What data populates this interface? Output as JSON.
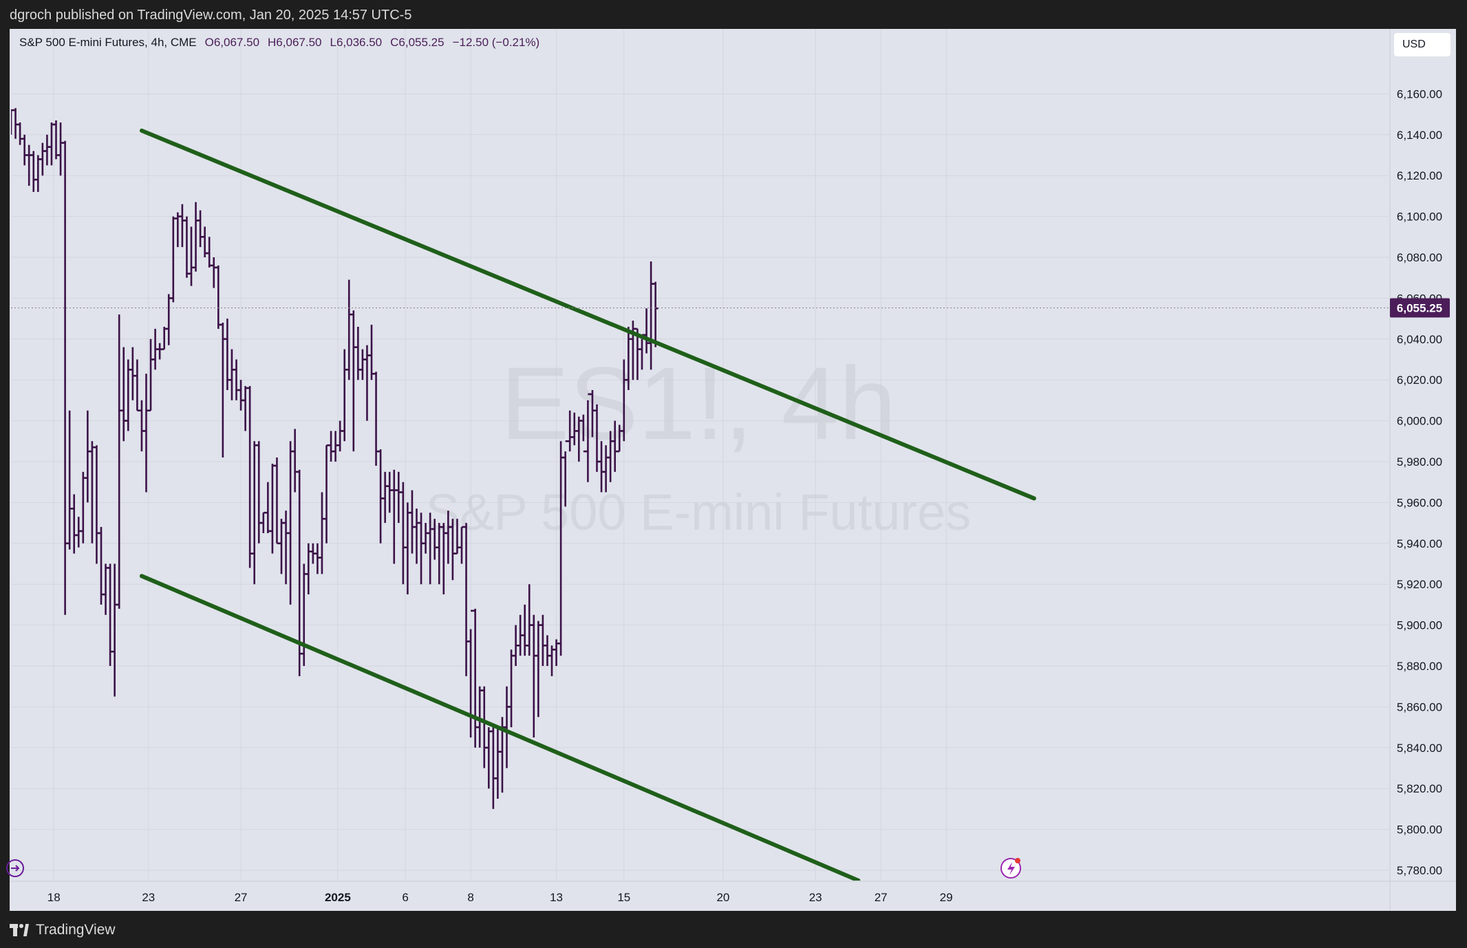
{
  "header": {
    "published_by": "dgroch published on TradingView.com, Jan 20, 2025 14:57 UTC-5"
  },
  "legend": {
    "symbol": "S&P 500 E-mini Futures, 4h, CME",
    "open": "O6,067.50",
    "high": "H6,067.50",
    "low": "L6,036.50",
    "close": "C6,055.25",
    "change": "−12.50 (−0.21%)"
  },
  "currency_label": "USD",
  "watermark": {
    "ticker": "ES1!, 4h",
    "name": "S&P 500 E-mini Futures"
  },
  "footer": {
    "brand": "TradingView"
  },
  "colors": {
    "bars": "#3b1247",
    "channel": "#1f5f1a",
    "price_tag": "#4b1d59",
    "background": "#e0e3eb"
  },
  "chart_data": {
    "type": "ohlc",
    "title": "S&P 500 E-mini Futures, 4h, CME",
    "ylim": [
      5775,
      6185
    ],
    "y_ticks": [
      5780,
      5800,
      5820,
      5840,
      5860,
      5880,
      5900,
      5920,
      5940,
      5960,
      5980,
      6000,
      6020,
      6040,
      6060,
      6080,
      6100,
      6120,
      6140,
      6160
    ],
    "y_tick_labels": [
      "5,780.00",
      "5,800.00",
      "5,820.00",
      "5,840.00",
      "5,860.00",
      "5,880.00",
      "5,900.00",
      "5,920.00",
      "5,940.00",
      "5,960.00",
      "5,980.00",
      "6,000.00",
      "6,020.00",
      "6,040.00",
      "6,060.00",
      "6,080.00",
      "6,100.00",
      "6,120.00",
      "6,140.00",
      "6,160.00"
    ],
    "x_ticks": [
      {
        "label": "18",
        "bar": 9.5
      },
      {
        "label": "23",
        "bar": 30.5
      },
      {
        "label": "27",
        "bar": 51
      },
      {
        "label": "2025",
        "bar": 72.5,
        "bold": true
      },
      {
        "label": "6",
        "bar": 87.5
      },
      {
        "label": "8",
        "bar": 102
      },
      {
        "label": "13",
        "bar": 121
      },
      {
        "label": "15",
        "bar": 136
      },
      {
        "label": "20",
        "bar": 158
      },
      {
        "label": "23",
        "bar": 178.5
      },
      {
        "label": "27",
        "bar": 193
      },
      {
        "label": "29",
        "bar": 207.5
      }
    ],
    "last_price": 6055.25,
    "last_price_label": "6,055.25",
    "channel": [
      {
        "name": "upper",
        "from": {
          "bar": 29,
          "price": 6142
        },
        "to": {
          "bar": 227,
          "price": 5962
        }
      },
      {
        "name": "lower",
        "from": {
          "bar": 29,
          "price": 5924
        },
        "to": {
          "bar": 188,
          "price": 5775
        }
      }
    ],
    "bars": [
      [
        6145,
        6152,
        6140,
        6152
      ],
      [
        6152,
        6153,
        6138,
        6145
      ],
      [
        6145,
        6146,
        6135,
        6138
      ],
      [
        6138,
        6140,
        6125,
        6130
      ],
      [
        6130,
        6135,
        6115,
        6130
      ],
      [
        6130,
        6132,
        6112,
        6118
      ],
      [
        6118,
        6130,
        6112,
        6128
      ],
      [
        6128,
        6136,
        6120,
        6132
      ],
      [
        6132,
        6140,
        6125,
        6134
      ],
      [
        6134,
        6146,
        6125,
        6145
      ],
      [
        6145,
        6147,
        6128,
        6130
      ],
      [
        6130,
        6146,
        6120,
        6136
      ],
      [
        6136,
        6137,
        5905,
        5940
      ],
      [
        5940,
        6005,
        5937,
        5957
      ],
      [
        5957,
        5964,
        5935,
        5944
      ],
      [
        5944,
        5953,
        5938,
        5946
      ],
      [
        5946,
        5975,
        5940,
        5972
      ],
      [
        5972,
        6005,
        5960,
        5985
      ],
      [
        5985,
        5990,
        5940,
        5987
      ],
      [
        5987,
        5988,
        5930,
        5945
      ],
      [
        5945,
        5948,
        5910,
        5915
      ],
      [
        5915,
        5930,
        5905,
        5928
      ],
      [
        5928,
        5930,
        5880,
        5887
      ],
      [
        5887,
        5930,
        5865,
        5910
      ],
      [
        5910,
        6052,
        5908,
        6005
      ],
      [
        6005,
        6036,
        5990,
        6000
      ],
      [
        6000,
        6030,
        5995,
        6025
      ],
      [
        6025,
        6036,
        6010,
        6022
      ],
      [
        6022,
        6030,
        6005,
        6005
      ],
      [
        6005,
        6010,
        5985,
        5995
      ],
      [
        5995,
        6023,
        5965,
        6005
      ],
      [
        6005,
        6040,
        6005,
        6030
      ],
      [
        6030,
        6045,
        6025,
        6035
      ],
      [
        6035,
        6038,
        6030,
        6035
      ],
      [
        6035,
        6046,
        6035,
        6045
      ],
      [
        6045,
        6062,
        6037,
        6060
      ],
      [
        6060,
        6100,
        6058,
        6099
      ],
      [
        6099,
        6102,
        6085,
        6100
      ],
      [
        6100,
        6106,
        6085,
        6098
      ],
      [
        6098,
        6100,
        6070,
        6072
      ],
      [
        6072,
        6095,
        6066,
        6075
      ],
      [
        6075,
        6107,
        6073,
        6098
      ],
      [
        6098,
        6103,
        6085,
        6090
      ],
      [
        6090,
        6095,
        6080,
        6082
      ],
      [
        6082,
        6090,
        6075,
        6076
      ],
      [
        6076,
        6080,
        6065,
        6075
      ],
      [
        6075,
        6076,
        6045,
        6047
      ],
      [
        6047,
        6048,
        5982,
        6040
      ],
      [
        6040,
        6050,
        6015,
        6020
      ],
      [
        6020,
        6035,
        6010,
        6025
      ],
      [
        6025,
        6030,
        6010,
        6015
      ],
      [
        6015,
        6020,
        6005,
        6010
      ],
      [
        6010,
        6017,
        5995,
        6016
      ],
      [
        6016,
        6017,
        5928,
        5935
      ],
      [
        5935,
        5990,
        5920,
        5988
      ],
      [
        5988,
        5990,
        5940,
        5950
      ],
      [
        5950,
        5955,
        5945,
        5955
      ],
      [
        5955,
        5970,
        5945,
        5946
      ],
      [
        5946,
        5979,
        5935,
        5978
      ],
      [
        5978,
        5982,
        5940,
        5940
      ],
      [
        5940,
        5952,
        5925,
        5950
      ],
      [
        5950,
        5956,
        5920,
        5945
      ],
      [
        5945,
        5990,
        5910,
        5985
      ],
      [
        5985,
        5996,
        5965,
        5975
      ],
      [
        5975,
        5976,
        5875,
        5886
      ],
      [
        5886,
        5930,
        5880,
        5925
      ],
      [
        5925,
        5940,
        5915,
        5936
      ],
      [
        5936,
        5940,
        5930,
        5935
      ],
      [
        5935,
        5940,
        5925,
        5933
      ],
      [
        5933,
        5965,
        5925,
        5952
      ],
      [
        5952,
        5988,
        5940,
        5988
      ],
      [
        5988,
        5995,
        5980,
        5985
      ],
      [
        5985,
        5995,
        5980,
        5988
      ],
      [
        5988,
        6000,
        5985,
        5995
      ],
      [
        5995,
        6035,
        5990,
        6025
      ],
      [
        6025,
        6069,
        6020,
        6052
      ],
      [
        6052,
        6054,
        5985,
        6036
      ],
      [
        6036,
        6046,
        6020,
        6025
      ],
      [
        6025,
        6035,
        6020,
        6030
      ],
      [
        6030,
        6037,
        6000,
        6032
      ],
      [
        6032,
        6047,
        6020,
        6023
      ],
      [
        6023,
        6024,
        5978,
        5985
      ],
      [
        5985,
        5986,
        5940,
        5962
      ],
      [
        5962,
        5975,
        5950,
        5968
      ],
      [
        5968,
        5975,
        5955,
        5966
      ],
      [
        5966,
        5976,
        5930,
        5966
      ],
      [
        5966,
        5975,
        5950,
        5965
      ],
      [
        5965,
        5970,
        5920,
        5938
      ],
      [
        5938,
        5960,
        5915,
        5955
      ],
      [
        5955,
        5966,
        5935,
        5948
      ],
      [
        5948,
        5957,
        5930,
        5950
      ],
      [
        5950,
        5955,
        5920,
        5940
      ],
      [
        5940,
        5950,
        5935,
        5945
      ],
      [
        5945,
        5955,
        5920,
        5947
      ],
      [
        5947,
        5952,
        5932,
        5938
      ],
      [
        5938,
        5950,
        5920,
        5948
      ],
      [
        5948,
        5950,
        5915,
        5945
      ],
      [
        5945,
        5956,
        5930,
        5948
      ],
      [
        5948,
        5952,
        5922,
        5935
      ],
      [
        5935,
        5952,
        5935,
        5938
      ],
      [
        5938,
        5948,
        5930,
        5948
      ],
      [
        5948,
        5950,
        5875,
        5892
      ],
      [
        5892,
        5898,
        5845,
        5907
      ],
      [
        5907,
        5908,
        5840,
        5850
      ],
      [
        5850,
        5870,
        5840,
        5868
      ],
      [
        5868,
        5870,
        5830,
        5840
      ],
      [
        5840,
        5850,
        5820,
        5848
      ],
      [
        5848,
        5850,
        5810,
        5825
      ],
      [
        5825,
        5850,
        5815,
        5838
      ],
      [
        5838,
        5855,
        5818,
        5850
      ],
      [
        5850,
        5870,
        5830,
        5860
      ],
      [
        5860,
        5888,
        5850,
        5885
      ],
      [
        5885,
        5900,
        5880,
        5890
      ],
      [
        5890,
        5905,
        5885,
        5895
      ],
      [
        5895,
        5910,
        5885,
        5890
      ],
      [
        5890,
        5920,
        5885,
        5900
      ],
      [
        5900,
        5905,
        5845,
        5885
      ],
      [
        5885,
        5902,
        5855,
        5900
      ],
      [
        5900,
        5905,
        5880,
        5890
      ],
      [
        5890,
        5895,
        5880,
        5885
      ],
      [
        5885,
        5890,
        5875,
        5888
      ],
      [
        5888,
        5893,
        5880,
        5891
      ],
      [
        5891,
        5990,
        5885,
        5982
      ],
      [
        5982,
        5985,
        5958,
        5990
      ],
      [
        5990,
        6005,
        5985,
        5992
      ],
      [
        5992,
        6004,
        5988,
        5995
      ],
      [
        5995,
        6002,
        5980,
        6000
      ],
      [
        6000,
        6003,
        5990,
        5985
      ],
      [
        5985,
        6010,
        5970,
        6013
      ],
      [
        6013,
        6015,
        5992,
        6005
      ],
      [
        6005,
        6008,
        5975,
        5980
      ],
      [
        5980,
        5990,
        5965,
        5975
      ],
      [
        5975,
        5988,
        5965,
        5982
      ],
      [
        5982,
        5995,
        5970,
        5990
      ],
      [
        5990,
        6000,
        5975,
        5985
      ],
      [
        5985,
        5998,
        5985,
        5995
      ],
      [
        5995,
        6030,
        5990,
        6020
      ],
      [
        6020,
        6046,
        6015,
        6040
      ],
      [
        6040,
        6049,
        6020,
        6045
      ],
      [
        6045,
        6045,
        6020,
        6035
      ],
      [
        6035,
        6040,
        6025,
        6042
      ],
      [
        6042,
        6055,
        6033,
        6038
      ],
      [
        6038,
        6078,
        6025,
        6067
      ],
      [
        6067,
        6068,
        6036,
        6055
      ]
    ]
  }
}
